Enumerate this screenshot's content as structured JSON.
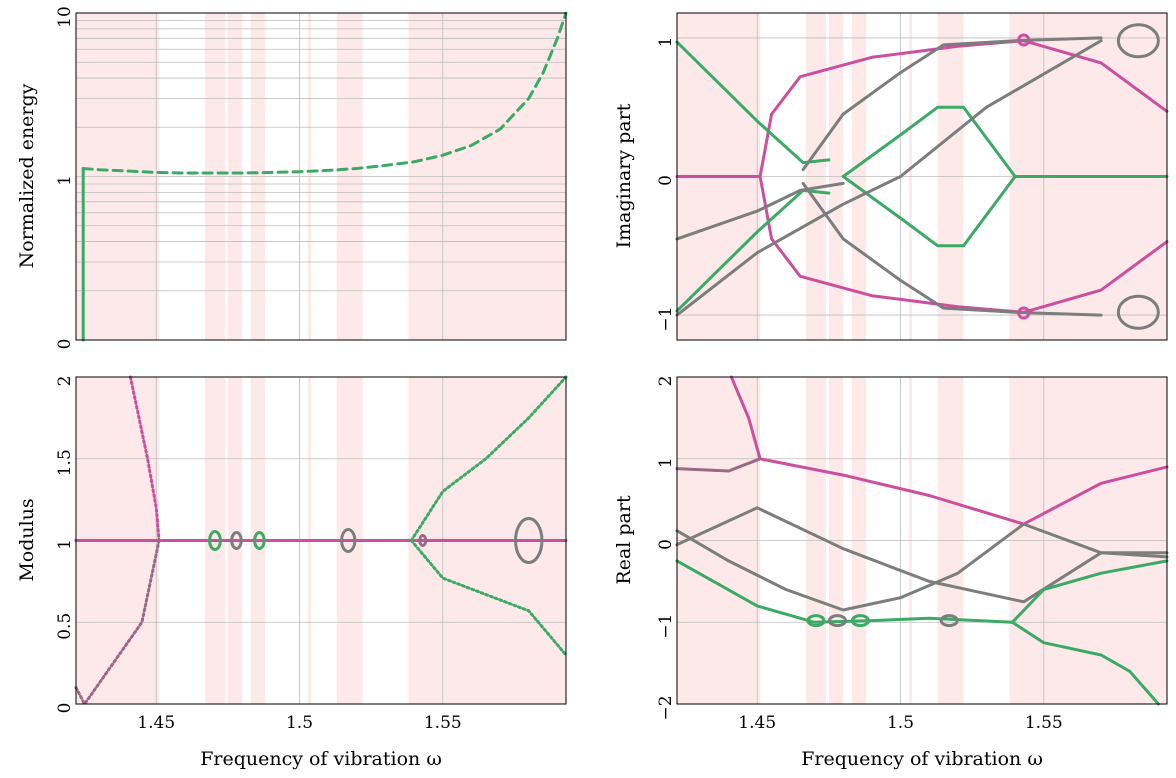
{
  "colors": {
    "band": "#fde9ea",
    "pink": "#cc4f9f",
    "green": "#3aaa64",
    "grayish": "#7a7e7c",
    "mauve": "#9b6886"
  },
  "chart_data": [
    {
      "id": "energy",
      "type": "line",
      "ylabel": "Normalized energy",
      "xlabel": "",
      "xlim": [
        1.422,
        1.593
      ],
      "ylim": [
        0,
        10
      ],
      "yscale": "log",
      "yticks": [
        "0",
        "1",
        "10"
      ],
      "grid": true,
      "shaded_bands": [
        [
          1.422,
          1.451
        ],
        [
          1.467,
          1.474
        ],
        [
          1.475,
          1.48
        ],
        [
          1.483,
          1.488
        ],
        [
          1.503,
          1.504
        ],
        [
          1.513,
          1.522
        ],
        [
          1.538,
          1.593
        ]
      ],
      "series": [
        {
          "style": "solid vertical",
          "x": [
            1.4245,
            1.4245
          ],
          "y": [
            0,
            1.12
          ]
        },
        {
          "style": "dashed/solid",
          "x": [
            1.4245,
            1.43,
            1.44,
            1.45,
            1.46,
            1.47,
            1.48,
            1.49,
            1.5,
            1.51,
            1.52,
            1.53,
            1.54,
            1.55,
            1.56,
            1.57,
            1.58,
            1.585,
            1.59,
            1.593
          ],
          "y": [
            1.12,
            1.1,
            1.08,
            1.06,
            1.05,
            1.05,
            1.05,
            1.06,
            1.07,
            1.09,
            1.12,
            1.17,
            1.23,
            1.35,
            1.55,
            1.95,
            3.0,
            4.3,
            7.0,
            10
          ]
        }
      ]
    },
    {
      "id": "imag",
      "type": "line",
      "ylabel": "Imaginary part",
      "xlabel": "",
      "xlim": [
        1.422,
        1.593
      ],
      "ylim": [
        -1.18,
        1.18
      ],
      "yticks": [
        "−1",
        "0",
        "1"
      ],
      "grid": true,
      "series": [
        {
          "color": "pink",
          "x": [
            1.422,
            1.44,
            1.451
          ],
          "y": [
            0,
            0,
            0
          ]
        },
        {
          "color": "pink",
          "x": [
            1.451,
            1.455,
            1.465,
            1.49,
            1.52,
            1.543,
            1.57,
            1.593
          ],
          "y": [
            0,
            0.45,
            0.72,
            0.86,
            0.94,
            0.98,
            0.82,
            0.47
          ]
        },
        {
          "color": "pink",
          "x": [
            1.451,
            1.455,
            1.465,
            1.49,
            1.52,
            1.543,
            1.57,
            1.593
          ],
          "y": [
            0,
            -0.45,
            -0.72,
            -0.86,
            -0.94,
            -0.98,
            -0.82,
            -0.47
          ]
        },
        {
          "color": "green",
          "x": [
            1.422,
            1.45,
            1.466,
            1.475
          ],
          "y": [
            0.97,
            0.4,
            0.1,
            0.12
          ]
        },
        {
          "color": "green",
          "x": [
            1.422,
            1.45,
            1.466,
            1.475
          ],
          "y": [
            -0.97,
            -0.4,
            -0.1,
            -0.12
          ]
        },
        {
          "color": "green",
          "x": [
            1.48,
            1.5,
            1.513,
            1.522,
            1.54,
            1.593
          ],
          "y": [
            0,
            0.3,
            0.5,
            0.5,
            0,
            0
          ]
        },
        {
          "color": "green",
          "x": [
            1.48,
            1.5,
            1.513,
            1.522,
            1.54
          ],
          "y": [
            0,
            -0.3,
            -0.5,
            -0.5,
            0
          ]
        },
        {
          "color": "grayish",
          "x": [
            1.422,
            1.45,
            1.465,
            1.48
          ],
          "y": [
            -0.45,
            -0.25,
            -0.1,
            -0.05
          ]
        },
        {
          "color": "grayish",
          "x": [
            1.466,
            1.48,
            1.5,
            1.515,
            1.54,
            1.57
          ],
          "y": [
            0.05,
            0.45,
            0.75,
            0.95,
            0.98,
            1.0
          ]
        },
        {
          "color": "grayish",
          "x": [
            1.466,
            1.48,
            1.5,
            1.515,
            1.54,
            1.57
          ],
          "y": [
            -0.05,
            -0.45,
            -0.75,
            -0.95,
            -0.98,
            -1.0
          ]
        },
        {
          "color": "grayish",
          "x": [
            1.422,
            1.45,
            1.48,
            1.5,
            1.53,
            1.57
          ],
          "y": [
            -1.0,
            -0.55,
            -0.2,
            0.0,
            0.5,
            0.98
          ]
        }
      ]
    },
    {
      "id": "modulus",
      "type": "scatter",
      "ylabel": "Modulus",
      "xlabel": "Frequency of vibration ω",
      "xlim": [
        1.422,
        1.593
      ],
      "ylim": [
        0,
        2
      ],
      "yticks": [
        "0",
        "0.5",
        "1",
        "1.5",
        "2"
      ],
      "xticks": [
        "1.45",
        "1.5",
        "1.55"
      ],
      "grid": true,
      "series": [
        {
          "color": "pink",
          "x": [
            1.422,
            1.593
          ],
          "y": [
            1,
            1
          ]
        },
        {
          "color": "pink",
          "x": [
            1.441,
            1.447,
            1.45,
            1.451
          ],
          "y": [
            2.0,
            1.5,
            1.2,
            1.0
          ]
        },
        {
          "color": "mauve",
          "x": [
            1.422,
            1.425,
            1.435,
            1.445,
            1.451
          ],
          "y": [
            0.1,
            0.0,
            0.25,
            0.5,
            1.0
          ]
        },
        {
          "color": "green",
          "x": [
            1.539,
            1.55,
            1.565,
            1.58,
            1.593
          ],
          "y": [
            1.0,
            1.3,
            1.5,
            1.75,
            2.0
          ]
        },
        {
          "color": "green",
          "x": [
            1.539,
            1.55,
            1.565,
            1.58,
            1.593
          ],
          "y": [
            1.0,
            0.77,
            0.67,
            0.57,
            0.3
          ]
        }
      ]
    },
    {
      "id": "real",
      "type": "line",
      "ylabel": "Real part",
      "xlabel": "Frequency of vibration ω",
      "xlim": [
        1.422,
        1.593
      ],
      "ylim": [
        -2,
        2
      ],
      "yticks": [
        "−2",
        "−1",
        "0",
        "1",
        "2"
      ],
      "xticks": [
        "1.45",
        "1.5",
        "1.55"
      ],
      "grid": true,
      "series": [
        {
          "color": "pink",
          "x": [
            1.441,
            1.447,
            1.451
          ],
          "y": [
            2.0,
            1.5,
            1.0
          ]
        },
        {
          "color": "pink",
          "x": [
            1.451,
            1.48,
            1.51,
            1.543,
            1.57,
            1.593
          ],
          "y": [
            1.0,
            0.8,
            0.55,
            0.2,
            0.7,
            0.9
          ]
        },
        {
          "color": "mauve",
          "x": [
            1.422,
            1.44,
            1.451
          ],
          "y": [
            0.88,
            0.85,
            1.0
          ]
        },
        {
          "color": "grayish",
          "x": [
            1.422,
            1.44,
            1.46,
            1.48,
            1.5,
            1.52,
            1.543,
            1.57,
            1.593
          ],
          "y": [
            0.12,
            -0.25,
            -0.6,
            -0.85,
            -0.7,
            -0.4,
            0.2,
            -0.15,
            -0.15
          ]
        },
        {
          "color": "grayish",
          "x": [
            1.422,
            1.45,
            1.48,
            1.51,
            1.543,
            1.57,
            1.593
          ],
          "y": [
            -0.05,
            0.4,
            -0.1,
            -0.5,
            -0.75,
            -0.15,
            -0.2
          ]
        },
        {
          "color": "green",
          "x": [
            1.422,
            1.45,
            1.47,
            1.49,
            1.51,
            1.539
          ],
          "y": [
            -0.25,
            -0.8,
            -1.0,
            -0.98,
            -0.95,
            -1.0
          ]
        },
        {
          "color": "green",
          "x": [
            1.539,
            1.55,
            1.57,
            1.593
          ],
          "y": [
            -1.0,
            -0.6,
            -0.4,
            -0.25
          ]
        },
        {
          "color": "green",
          "x": [
            1.539,
            1.55,
            1.57,
            1.58,
            1.59
          ],
          "y": [
            -1.0,
            -1.25,
            -1.4,
            -1.6,
            -2.0
          ]
        }
      ]
    }
  ]
}
